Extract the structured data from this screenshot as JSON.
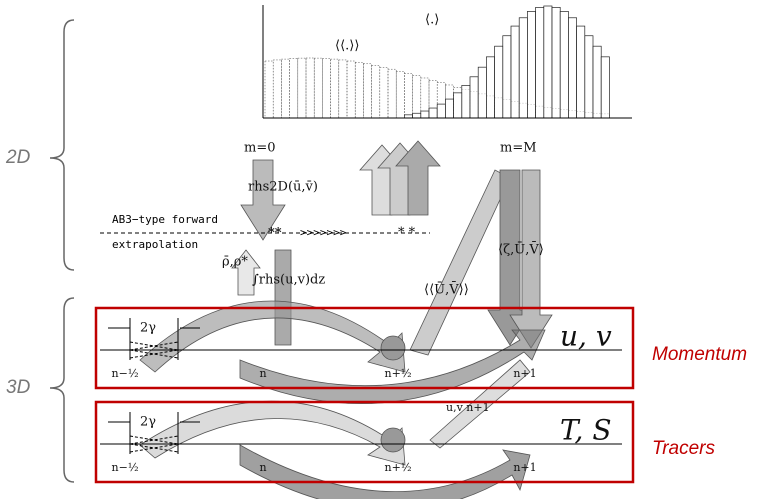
{
  "brackets": {
    "top": "2D",
    "bottom": "3D"
  },
  "histogram": {
    "barotropic_label": "⟨.⟩",
    "fast_label": "⟨⟨.⟩⟩",
    "start": "m=0",
    "end": "m=M"
  },
  "annotations": {
    "rhs2d": "rhs2D(ū,v̄)",
    "ab3_line1": "AB3−type forward",
    "ab3_line2": "extrapolation",
    "arrows": ">>>>>>>",
    "stars_left": "**",
    "stars_right": "* *",
    "density": "ρ̄,ρ*",
    "integral": "∫rhs(u,v)dz",
    "fast_avg": "⟨⟨Ū,V̄⟩⟩",
    "slow_avg": "⟨ζ,Ū,V̄⟩",
    "new_velocity": "u,v n+1"
  },
  "panels": [
    {
      "variable": "u, v",
      "caption": "Momentum",
      "width_label": "2γ",
      "steps": [
        "n−½",
        "n",
        "n+½",
        "n+1"
      ]
    },
    {
      "variable": "T, S",
      "caption": "Tracers",
      "width_label": "2γ",
      "steps": [
        "n−½",
        "n",
        "n+½",
        "n+1"
      ]
    }
  ]
}
